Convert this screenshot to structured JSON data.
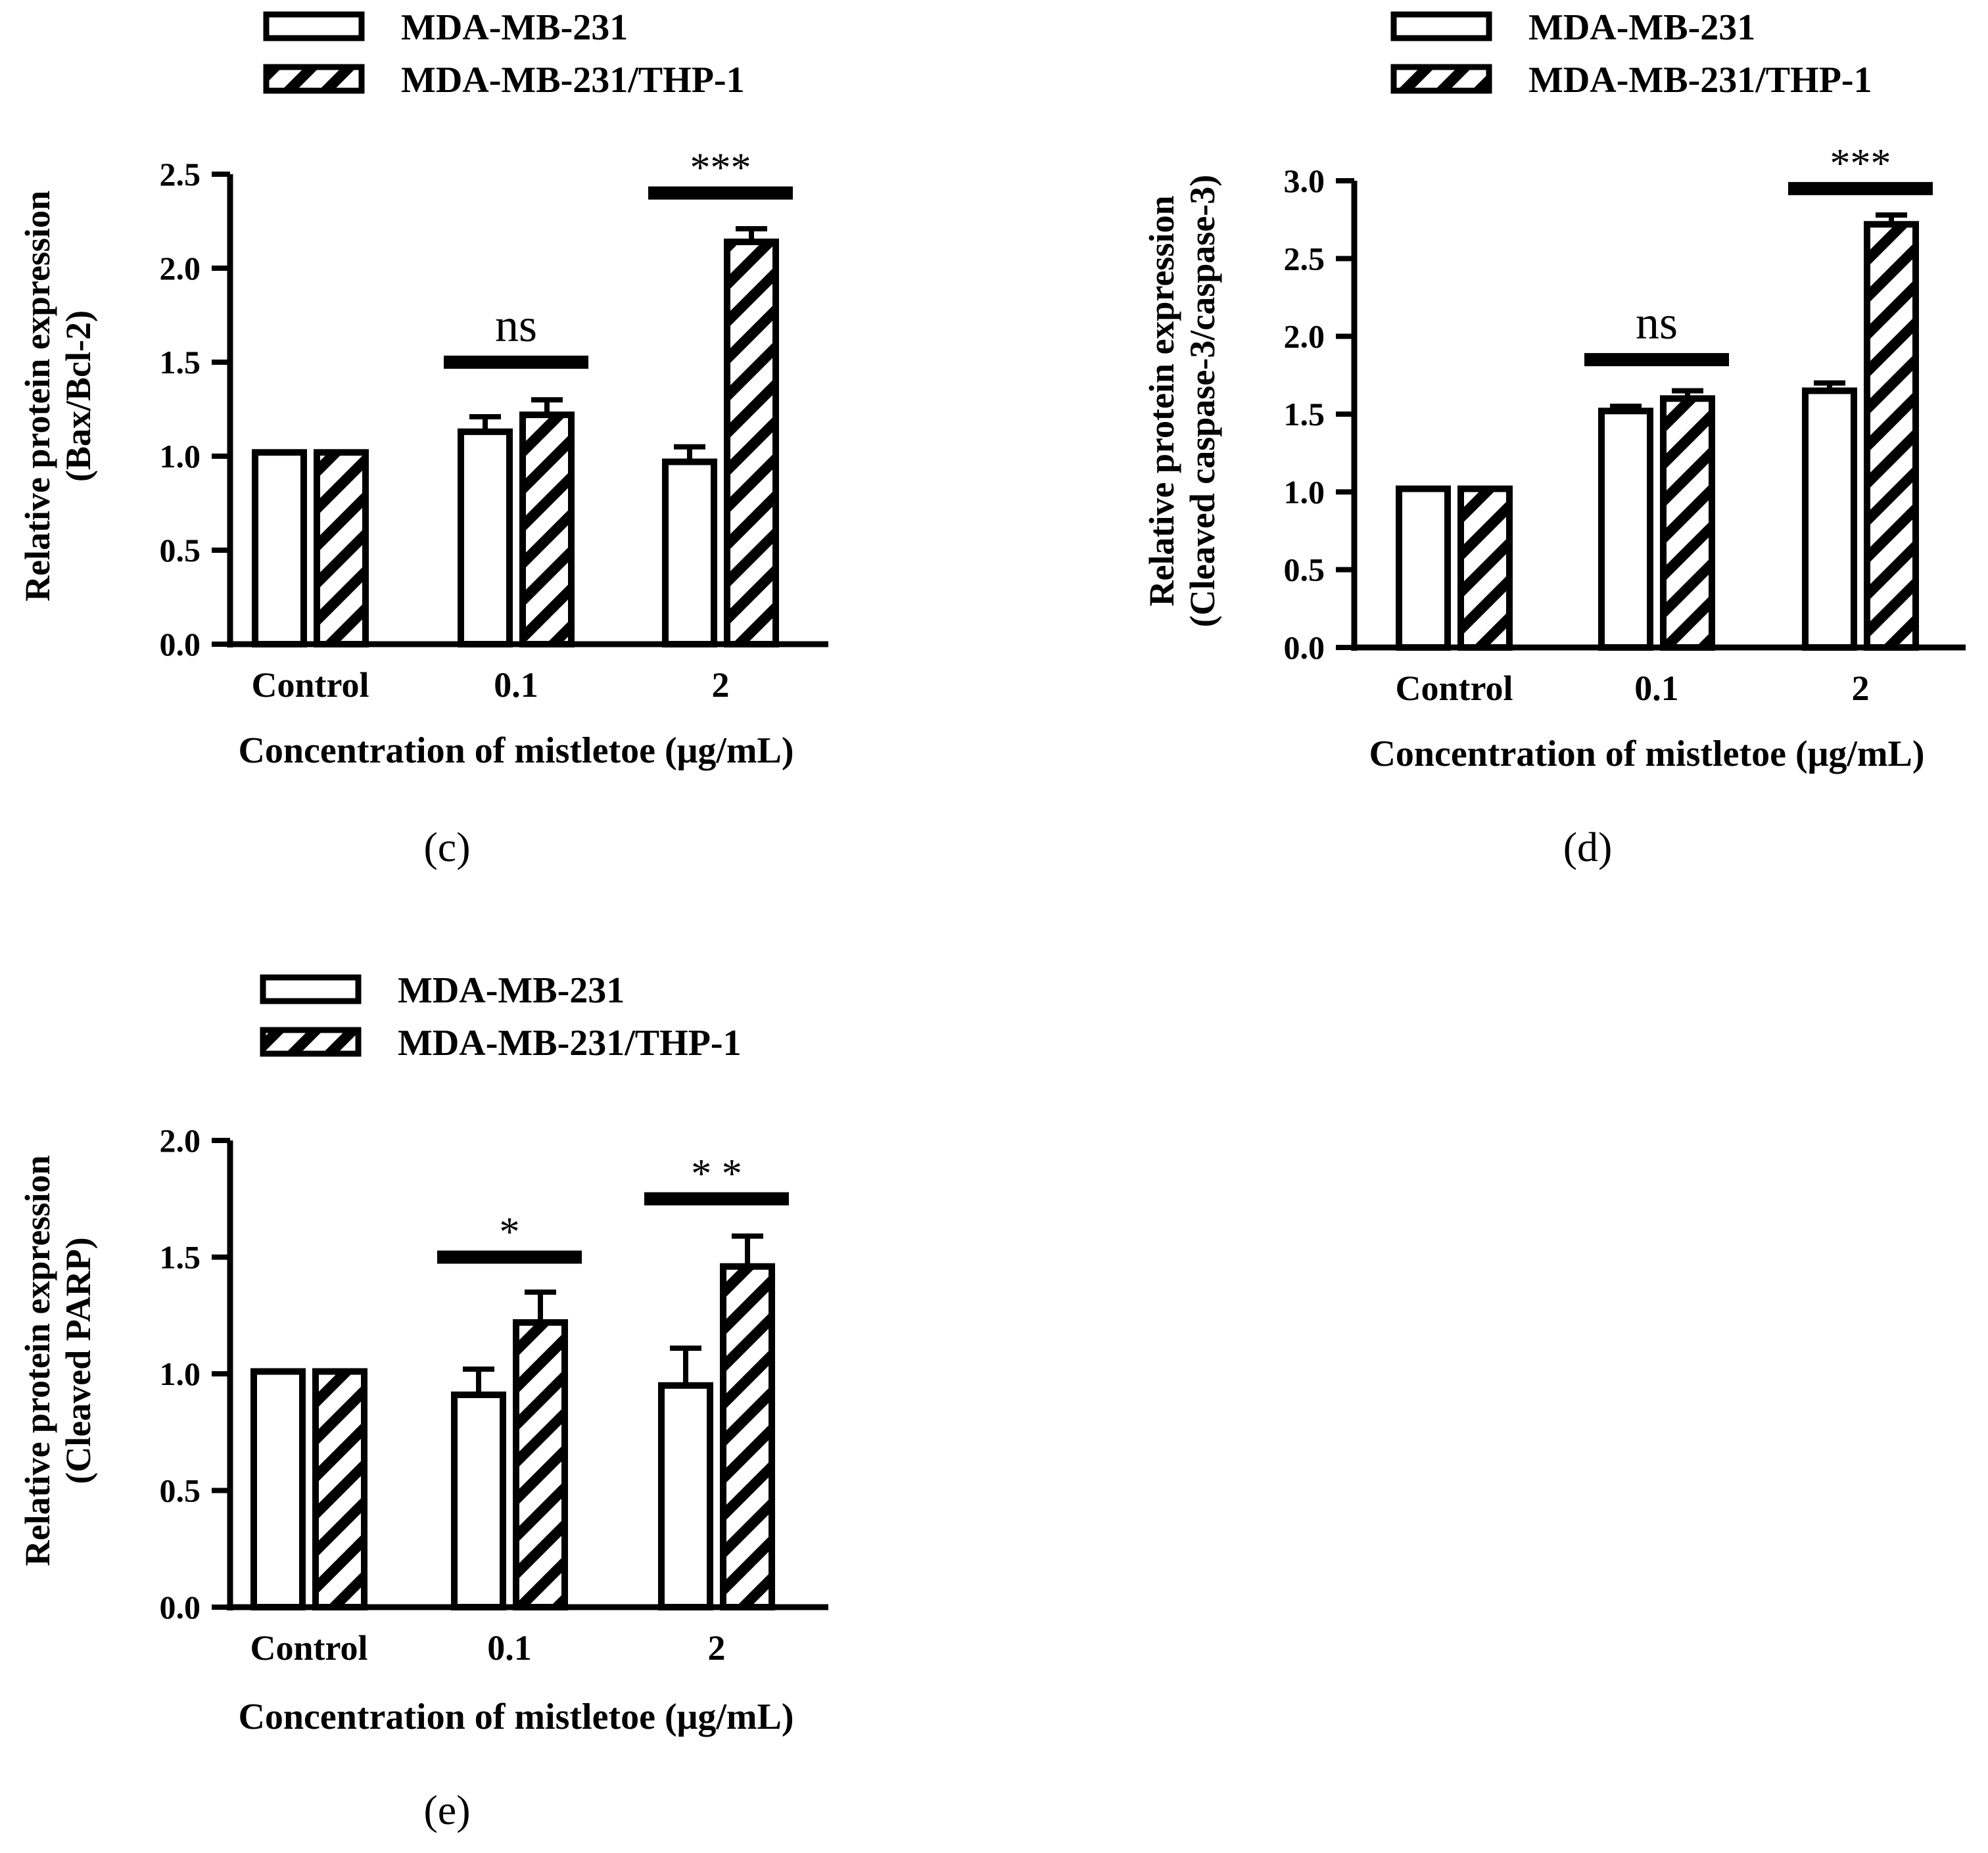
{
  "chart_data": [
    {
      "type": "bar",
      "panel_label": "(c)",
      "categories": [
        "Control",
        "0.1",
        "2"
      ],
      "series": [
        {
          "name": "MDA-MB-231",
          "pattern": "open",
          "values": [
            1.02,
            1.13,
            0.97
          ],
          "errors": [
            0.0,
            0.08,
            0.08
          ]
        },
        {
          "name": "MDA-MB-231/THP-1",
          "pattern": "hatched",
          "values": [
            1.02,
            1.22,
            2.14
          ],
          "errors": [
            0.0,
            0.08,
            0.07
          ]
        }
      ],
      "xlabel": "Concentration of mistletoe (μg/mL)",
      "ylabel": [
        "Relative protein expression",
        "(Bax/Bcl-2)"
      ],
      "ylim": [
        0,
        2.5
      ],
      "yticks": [
        "0.0",
        "0.5",
        "1.0",
        "1.5",
        "2.0",
        "2.5"
      ],
      "significance": [
        {
          "category": "0.1",
          "label": "ns",
          "y": 1.5
        },
        {
          "category": "2",
          "label": "***",
          "y": 2.4
        }
      ]
    },
    {
      "type": "bar",
      "panel_label": "(d)",
      "categories": [
        "Control",
        "0.1",
        "2"
      ],
      "series": [
        {
          "name": "MDA-MB-231",
          "pattern": "open",
          "values": [
            1.02,
            1.52,
            1.65
          ],
          "errors": [
            0.0,
            0.03,
            0.05
          ]
        },
        {
          "name": "MDA-MB-231/THP-1",
          "pattern": "hatched",
          "values": [
            1.02,
            1.6,
            2.72
          ],
          "errors": [
            0.0,
            0.05,
            0.06
          ]
        }
      ],
      "xlabel": "Concentration of mistletoe (μg/mL)",
      "ylabel": [
        "Relative protein expression",
        "(Cleaved caspase-3/caspase-3)"
      ],
      "ylim": [
        0,
        3.0
      ],
      "yticks": [
        "0.0",
        "0.5",
        "1.0",
        "1.5",
        "2.0",
        "2.5",
        "3.0"
      ],
      "significance": [
        {
          "category": "0.1",
          "label": "ns",
          "y": 1.85
        },
        {
          "category": "2",
          "label": "***",
          "y": 2.95
        }
      ]
    },
    {
      "type": "bar",
      "panel_label": "(e)",
      "categories": [
        "Control",
        "0.1",
        "2"
      ],
      "series": [
        {
          "name": "MDA-MB-231",
          "pattern": "open",
          "values": [
            1.01,
            0.91,
            0.95
          ],
          "errors": [
            0.0,
            0.11,
            0.16
          ]
        },
        {
          "name": "MDA-MB-231/THP-1",
          "pattern": "hatched",
          "values": [
            1.01,
            1.22,
            1.46
          ],
          "errors": [
            0.0,
            0.13,
            0.13
          ]
        }
      ],
      "xlabel": "Concentration of mistletoe (μg/mL)",
      "ylabel": [
        "Relative protein expression",
        "(Cleaved PARP)"
      ],
      "ylim": [
        0,
        2.0
      ],
      "yticks": [
        "0.0",
        "0.5",
        "1.0",
        "1.5",
        "2.0"
      ],
      "significance": [
        {
          "category": "0.1",
          "label": "*",
          "y": 1.5
        },
        {
          "category": "2",
          "label": "* *",
          "y": 1.75
        }
      ]
    }
  ]
}
